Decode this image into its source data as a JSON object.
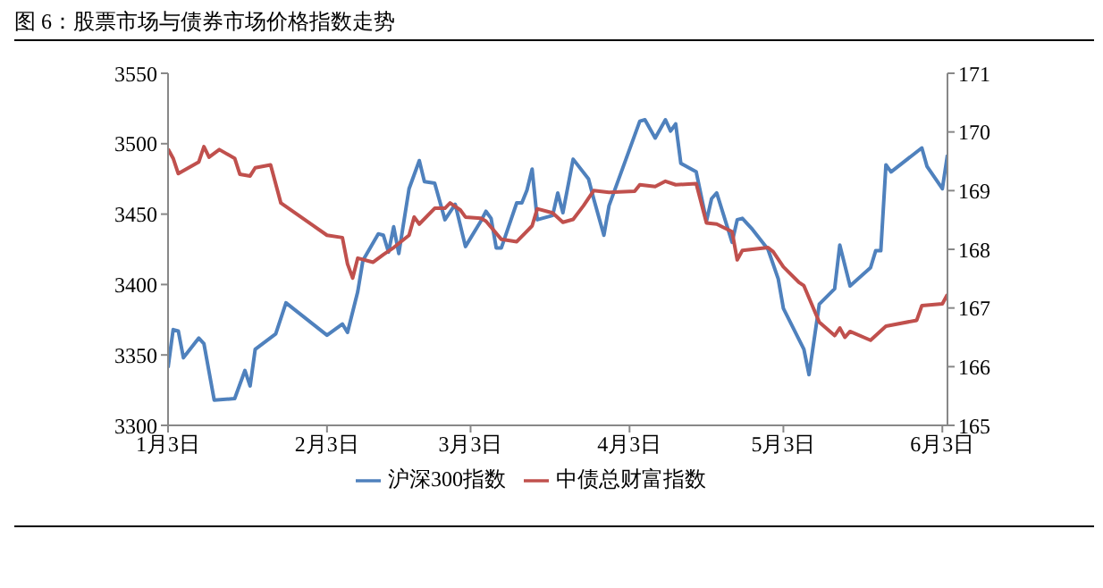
{
  "chart_data": {
    "type": "line",
    "title": "图 6：股票市场与债券市场价格指数走势",
    "xlim": [
      "--01-03",
      "--06-04"
    ],
    "xticks": [
      {
        "value": "--01-03",
        "label": "1月3日"
      },
      {
        "value": "--02-03",
        "label": "2月3日"
      },
      {
        "value": "--03-03",
        "label": "3月3日"
      },
      {
        "value": "--04-03",
        "label": "4月3日"
      },
      {
        "value": "--05-03",
        "label": "5月3日"
      },
      {
        "value": "--06-03",
        "label": "6月3日"
      }
    ],
    "ylim": [
      3300,
      3550
    ],
    "yticks": [
      3300,
      3350,
      3400,
      3450,
      3500,
      3550
    ],
    "y2lim": [
      165,
      171
    ],
    "y2ticks": [
      165,
      166,
      167,
      168,
      169,
      170,
      171
    ],
    "legend": "bottom",
    "marker": "none",
    "line_style": "solid",
    "series": [
      {
        "name": "沪深300指数",
        "color": "#4f81bd",
        "x": [
          "--01-03",
          "--01-04",
          "--01-05",
          "--01-06",
          "--01-09",
          "--01-10",
          "--01-12",
          "--01-16",
          "--01-18",
          "--01-19",
          "--01-20",
          "--01-24",
          "--01-26",
          "--02-03",
          "--02-06",
          "--02-07",
          "--02-09",
          "--02-10",
          "--02-13",
          "--02-14",
          "--02-15",
          "--02-16",
          "--02-17",
          "--02-19",
          "--02-21",
          "--02-22",
          "--02-24",
          "--02-26",
          "--02-28",
          "--03-02",
          "--03-05",
          "--03-06",
          "--03-07",
          "--03-08",
          "--03-09",
          "--03-12",
          "--03-13",
          "--03-14",
          "--03-15",
          "--03-16",
          "--03-19",
          "--03-20",
          "--03-21",
          "--03-23",
          "--03-26",
          "--03-27",
          "--03-29",
          "--03-30",
          "--04-05",
          "--04-06",
          "--04-08",
          "--04-10",
          "--04-11",
          "--04-12",
          "--04-13",
          "--04-16",
          "--04-18",
          "--04-19",
          "--04-20",
          "--04-23",
          "--04-24",
          "--04-25",
          "--04-27",
          "--04-30",
          "--05-02",
          "--05-03",
          "--05-07",
          "--05-08",
          "--05-10",
          "--05-13",
          "--05-14",
          "--05-16",
          "--05-20",
          "--05-21",
          "--05-22",
          "--05-23",
          "--05-24",
          "--05-30",
          "--05-31",
          "--06-03",
          "--06-04"
        ],
        "values": [
          3341,
          3368,
          3367,
          3348,
          3362,
          3358,
          3318,
          3319,
          3339,
          3328,
          3354,
          3365,
          3387,
          3364,
          3372,
          3366,
          3395,
          3417,
          3436,
          3435,
          3423,
          3441,
          3422,
          3468,
          3488,
          3473,
          3472,
          3446,
          3457,
          3427,
          3445,
          3452,
          3447,
          3426,
          3426,
          3458,
          3458,
          3467,
          3482,
          3446,
          3449,
          3465,
          3451,
          3489,
          3475,
          3461,
          3435,
          3456,
          3516,
          3517,
          3504,
          3517,
          3509,
          3514,
          3486,
          3480,
          3445,
          3461,
          3465,
          3430,
          3446,
          3447,
          3439,
          3425,
          3404,
          3383,
          3354,
          3336,
          3386,
          3397,
          3428,
          3399,
          3412,
          3424,
          3424,
          3485,
          3480,
          3497,
          3484,
          3468,
          3492
        ]
      },
      {
        "name": "中债总财富指数",
        "color": "#c0504d",
        "axis": "y2",
        "x": [
          "--01-03",
          "--01-04",
          "--01-05",
          "--01-09",
          "--01-10",
          "--01-11",
          "--01-13",
          "--01-16",
          "--01-17",
          "--01-19",
          "--01-20",
          "--01-23",
          "--01-25",
          "--02-03",
          "--02-06",
          "--02-07",
          "--02-08",
          "--02-09",
          "--02-12",
          "--02-14",
          "--02-16",
          "--02-19",
          "--02-20",
          "--02-21",
          "--02-24",
          "--02-26",
          "--02-27",
          "--03-01",
          "--03-02",
          "--03-05",
          "--03-06",
          "--03-09",
          "--03-12",
          "--03-15",
          "--03-16",
          "--03-19",
          "--03-21",
          "--03-23",
          "--03-25",
          "--03-27",
          "--03-30",
          "--04-04",
          "--04-05",
          "--04-08",
          "--04-10",
          "--04-12",
          "--04-16",
          "--04-18",
          "--04-20",
          "--04-23",
          "--04-24",
          "--04-25",
          "--04-30",
          "--05-01",
          "--05-03",
          "--05-06",
          "--05-07",
          "--05-10",
          "--05-13",
          "--05-14",
          "--05-15",
          "--05-16",
          "--05-20",
          "--05-23",
          "--05-29",
          "--05-30",
          "--06-03",
          "--06-04"
        ],
        "values": [
          169.71,
          169.55,
          169.29,
          169.49,
          169.75,
          169.57,
          169.7,
          169.55,
          169.28,
          169.25,
          169.39,
          169.44,
          168.79,
          168.24,
          168.2,
          167.75,
          167.51,
          167.85,
          167.78,
          167.91,
          168.03,
          168.24,
          168.55,
          168.43,
          168.7,
          168.7,
          168.79,
          168.67,
          168.55,
          168.53,
          168.48,
          168.17,
          168.13,
          168.4,
          168.69,
          168.62,
          168.46,
          168.51,
          168.74,
          169,
          168.97,
          168.99,
          169.1,
          169.07,
          169.16,
          169.1,
          169.12,
          168.45,
          168.43,
          168.3,
          167.82,
          167.98,
          168.03,
          167.96,
          167.7,
          167.44,
          167.38,
          166.76,
          166.53,
          166.66,
          166.5,
          166.6,
          166.45,
          166.69,
          166.79,
          167.04,
          167.07,
          167.23
        ]
      }
    ]
  }
}
